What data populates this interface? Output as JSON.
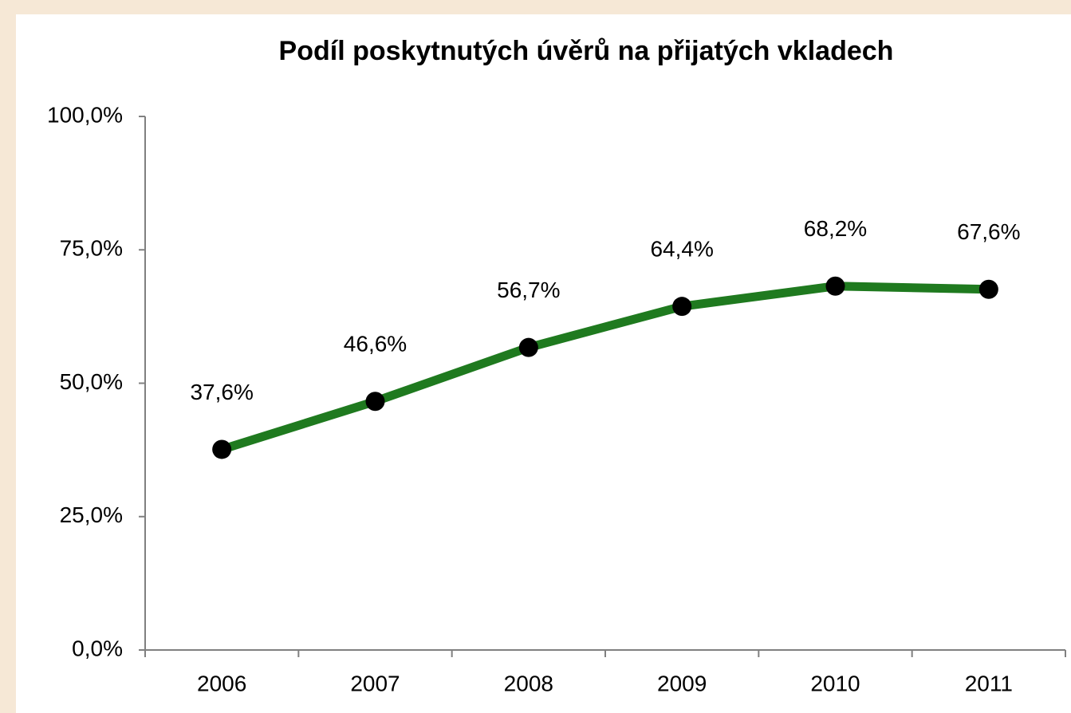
{
  "chart_data": {
    "type": "line",
    "title": "Podíl poskytnutých úvěrů na přijatých vkladech",
    "categories": [
      "2006",
      "2007",
      "2008",
      "2009",
      "2010",
      "2011"
    ],
    "values": [
      37.6,
      46.6,
      56.7,
      64.4,
      68.2,
      67.6
    ],
    "value_labels": [
      "37,6%",
      "46,6%",
      "56,7%",
      "64,4%",
      "68,2%",
      "67,6%"
    ],
    "color": "#1f7a1f",
    "marker_color": "#000000",
    "ylim": [
      0,
      100
    ],
    "yticks": [
      {
        "value": 0,
        "label": "0,0%"
      },
      {
        "value": 25,
        "label": "25,0%"
      },
      {
        "value": 50,
        "label": "50,0%"
      },
      {
        "value": 75,
        "label": "75,0%"
      },
      {
        "value": 100,
        "label": "100,0%"
      }
    ],
    "grid": false
  }
}
